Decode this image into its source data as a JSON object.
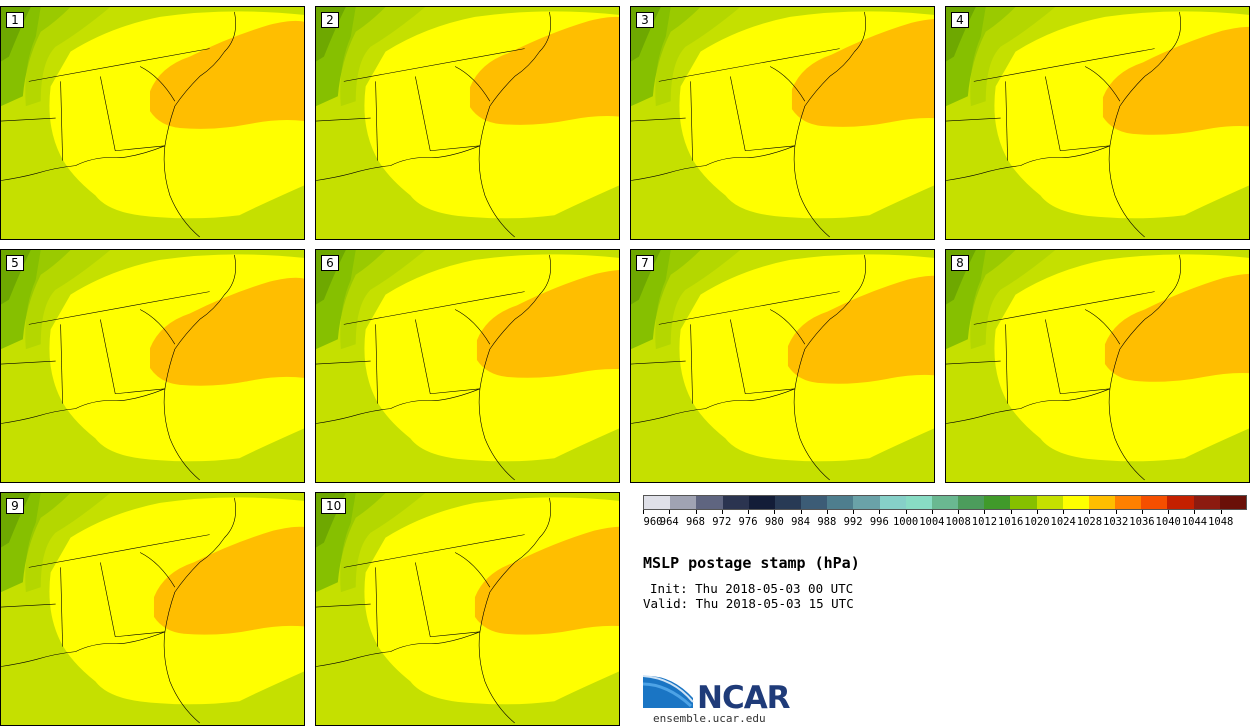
{
  "panels": [
    {
      "label": "1"
    },
    {
      "label": "2"
    },
    {
      "label": "3"
    },
    {
      "label": "4"
    },
    {
      "label": "5"
    },
    {
      "label": "6"
    },
    {
      "label": "7"
    },
    {
      "label": "8"
    },
    {
      "label": "9"
    },
    {
      "label": "10"
    }
  ],
  "colorbar": {
    "labels": [
      "960",
      "964",
      "968",
      "972",
      "976",
      "980",
      "984",
      "988",
      "992",
      "996",
      "1000",
      "1004",
      "1008",
      "1012",
      "1016",
      "1020",
      "1024",
      "1028",
      "1032",
      "1036",
      "1040",
      "1044",
      "1048"
    ],
    "colors": [
      "#dfe0e8",
      "#a0a3b3",
      "#5f6580",
      "#2b3450",
      "#131d38",
      "#283a55",
      "#3c5c76",
      "#4e7e8e",
      "#6aa2a8",
      "#86d0c8",
      "#88dcc4",
      "#6ab891",
      "#4c9c5c",
      "#409a2a",
      "#86c000",
      "#c5e000",
      "#ffff00",
      "#ffbe00",
      "#ff8000",
      "#f54f00",
      "#c42000",
      "#8c1b10",
      "#6a1008"
    ]
  },
  "title": "MSLP postage stamp (hPa)",
  "init": "Init: Thu 2018-05-03 00 UTC",
  "valid": "Valid: Thu 2018-05-03 15 UTC",
  "logo": {
    "name": "NCAR",
    "url": "ensemble.ucar.edu"
  },
  "map_colors": {
    "lt1016": "#86c000",
    "p1016": "#a8d000",
    "p1020": "#c5e000",
    "p1024": "#ffff00",
    "p1028": "#ffbe00"
  }
}
